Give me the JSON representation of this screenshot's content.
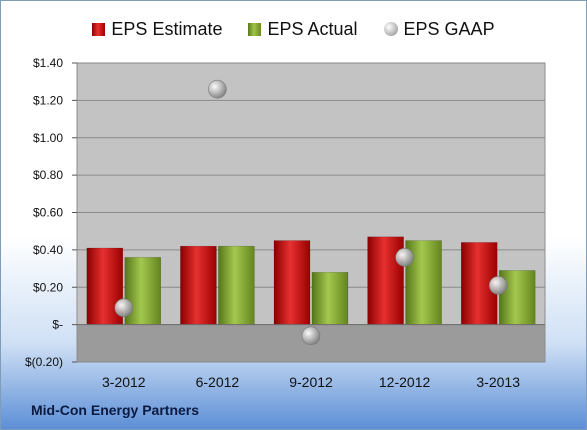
{
  "chart_data": {
    "type": "bar",
    "categories": [
      "3-2012",
      "6-2012",
      "9-2012",
      "12-2012",
      "3-2013"
    ],
    "series": [
      {
        "name": "EPS Estimate",
        "kind": "bar",
        "color": "#d42020",
        "values": [
          0.41,
          0.42,
          0.45,
          0.47,
          0.44
        ]
      },
      {
        "name": "EPS Actual",
        "kind": "bar",
        "color": "#8fb83e",
        "values": [
          0.36,
          0.42,
          0.28,
          0.45,
          0.29
        ]
      },
      {
        "name": "EPS GAAP",
        "kind": "scatter",
        "color": "#b4b4b4",
        "values": [
          0.09,
          1.26,
          -0.06,
          0.36,
          0.21
        ]
      }
    ],
    "ylim": [
      -0.2,
      1.4
    ],
    "yticks": [
      -0.2,
      0,
      0.2,
      0.4,
      0.6,
      0.8,
      1.0,
      1.2,
      1.4
    ],
    "ytick_labels": [
      "$(0.20)",
      "$-",
      "$0.20",
      "$0.40",
      "$0.60",
      "$0.80",
      "$1.00",
      "$1.20",
      "$1.40"
    ],
    "grid": true,
    "legend_position": "top-center",
    "title": "",
    "xlabel": "",
    "ylabel": ""
  },
  "caption": "Mid-Con Energy Partners"
}
